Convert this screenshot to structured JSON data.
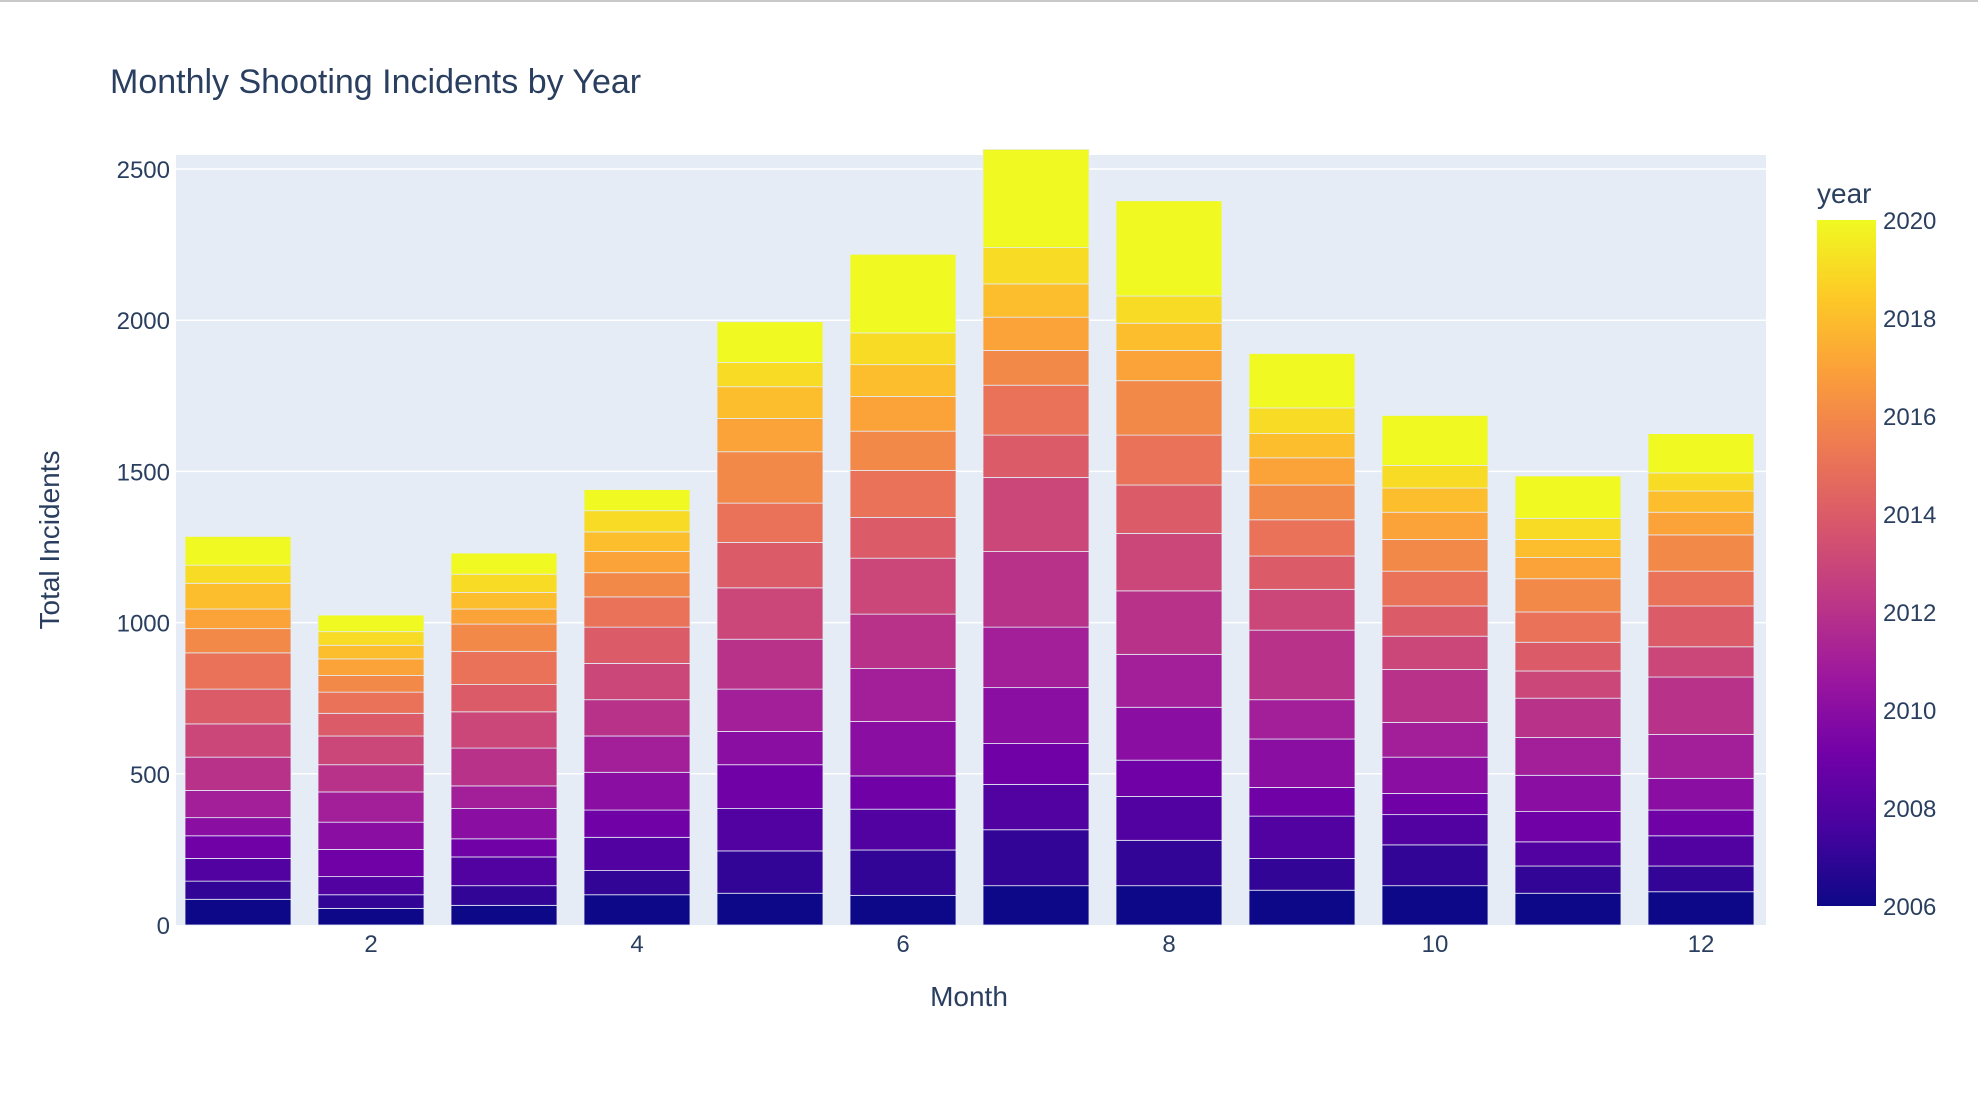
{
  "chart_data": {
    "type": "bar",
    "stacked": true,
    "title": "Monthly Shooting Incidents by Year",
    "xlabel": "Month",
    "ylabel": "Total Incidents",
    "x": [
      1,
      2,
      3,
      4,
      5,
      6,
      7,
      8,
      9,
      10,
      11,
      12
    ],
    "xticks": [
      2,
      4,
      6,
      8,
      10,
      12
    ],
    "ylim": [
      0,
      2600
    ],
    "yticks": [
      0,
      500,
      1000,
      1500,
      2000,
      2500
    ],
    "grid": true,
    "colorbar": {
      "title": "year",
      "min": 2006,
      "max": 2020,
      "ticks": [
        2006,
        2008,
        2010,
        2012,
        2014,
        2016,
        2018,
        2020
      ],
      "colorscale": "plasma"
    },
    "years": [
      2006,
      2007,
      2008,
      2009,
      2010,
      2011,
      2012,
      2013,
      2014,
      2015,
      2016,
      2017,
      2018,
      2019,
      2020
    ],
    "series": [
      {
        "year": 2006,
        "values": [
          85,
          55,
          65,
          100,
          105,
          98,
          130,
          130,
          115,
          130,
          105,
          110
        ]
      },
      {
        "year": 2007,
        "values": [
          60,
          45,
          65,
          80,
          140,
          150,
          185,
          150,
          105,
          135,
          90,
          85
        ]
      },
      {
        "year": 2008,
        "values": [
          75,
          60,
          95,
          110,
          140,
          135,
          150,
          145,
          140,
          100,
          80,
          100
        ]
      },
      {
        "year": 2009,
        "values": [
          75,
          90,
          60,
          90,
          145,
          110,
          135,
          120,
          95,
          70,
          100,
          85
        ]
      },
      {
        "year": 2010,
        "values": [
          60,
          90,
          100,
          125,
          110,
          180,
          185,
          175,
          160,
          120,
          120,
          105
        ]
      },
      {
        "year": 2011,
        "values": [
          90,
          100,
          75,
          120,
          140,
          175,
          200,
          175,
          130,
          115,
          125,
          145
        ]
      },
      {
        "year": 2012,
        "values": [
          110,
          90,
          125,
          120,
          165,
          180,
          250,
          210,
          230,
          175,
          130,
          190
        ]
      },
      {
        "year": 2013,
        "values": [
          110,
          95,
          120,
          120,
          170,
          185,
          245,
          190,
          135,
          110,
          90,
          100
        ]
      },
      {
        "year": 2014,
        "values": [
          115,
          75,
          90,
          120,
          150,
          135,
          140,
          160,
          110,
          100,
          95,
          135
        ]
      },
      {
        "year": 2015,
        "values": [
          120,
          70,
          110,
          100,
          130,
          155,
          165,
          165,
          120,
          115,
          100,
          115
        ]
      },
      {
        "year": 2016,
        "values": [
          80,
          55,
          90,
          80,
          170,
          130,
          115,
          180,
          115,
          105,
          110,
          120
        ]
      },
      {
        "year": 2017,
        "values": [
          65,
          55,
          50,
          70,
          110,
          115,
          110,
          100,
          90,
          90,
          70,
          75
        ]
      },
      {
        "year": 2018,
        "values": [
          85,
          45,
          55,
          65,
          105,
          105,
          110,
          90,
          80,
          80,
          60,
          70
        ]
      },
      {
        "year": 2019,
        "values": [
          60,
          45,
          60,
          70,
          80,
          105,
          120,
          90,
          85,
          75,
          70,
          60
        ]
      },
      {
        "year": 2020,
        "values": [
          95,
          55,
          70,
          70,
          135,
          260,
          325,
          315,
          180,
          165,
          140,
          130
        ]
      }
    ]
  }
}
